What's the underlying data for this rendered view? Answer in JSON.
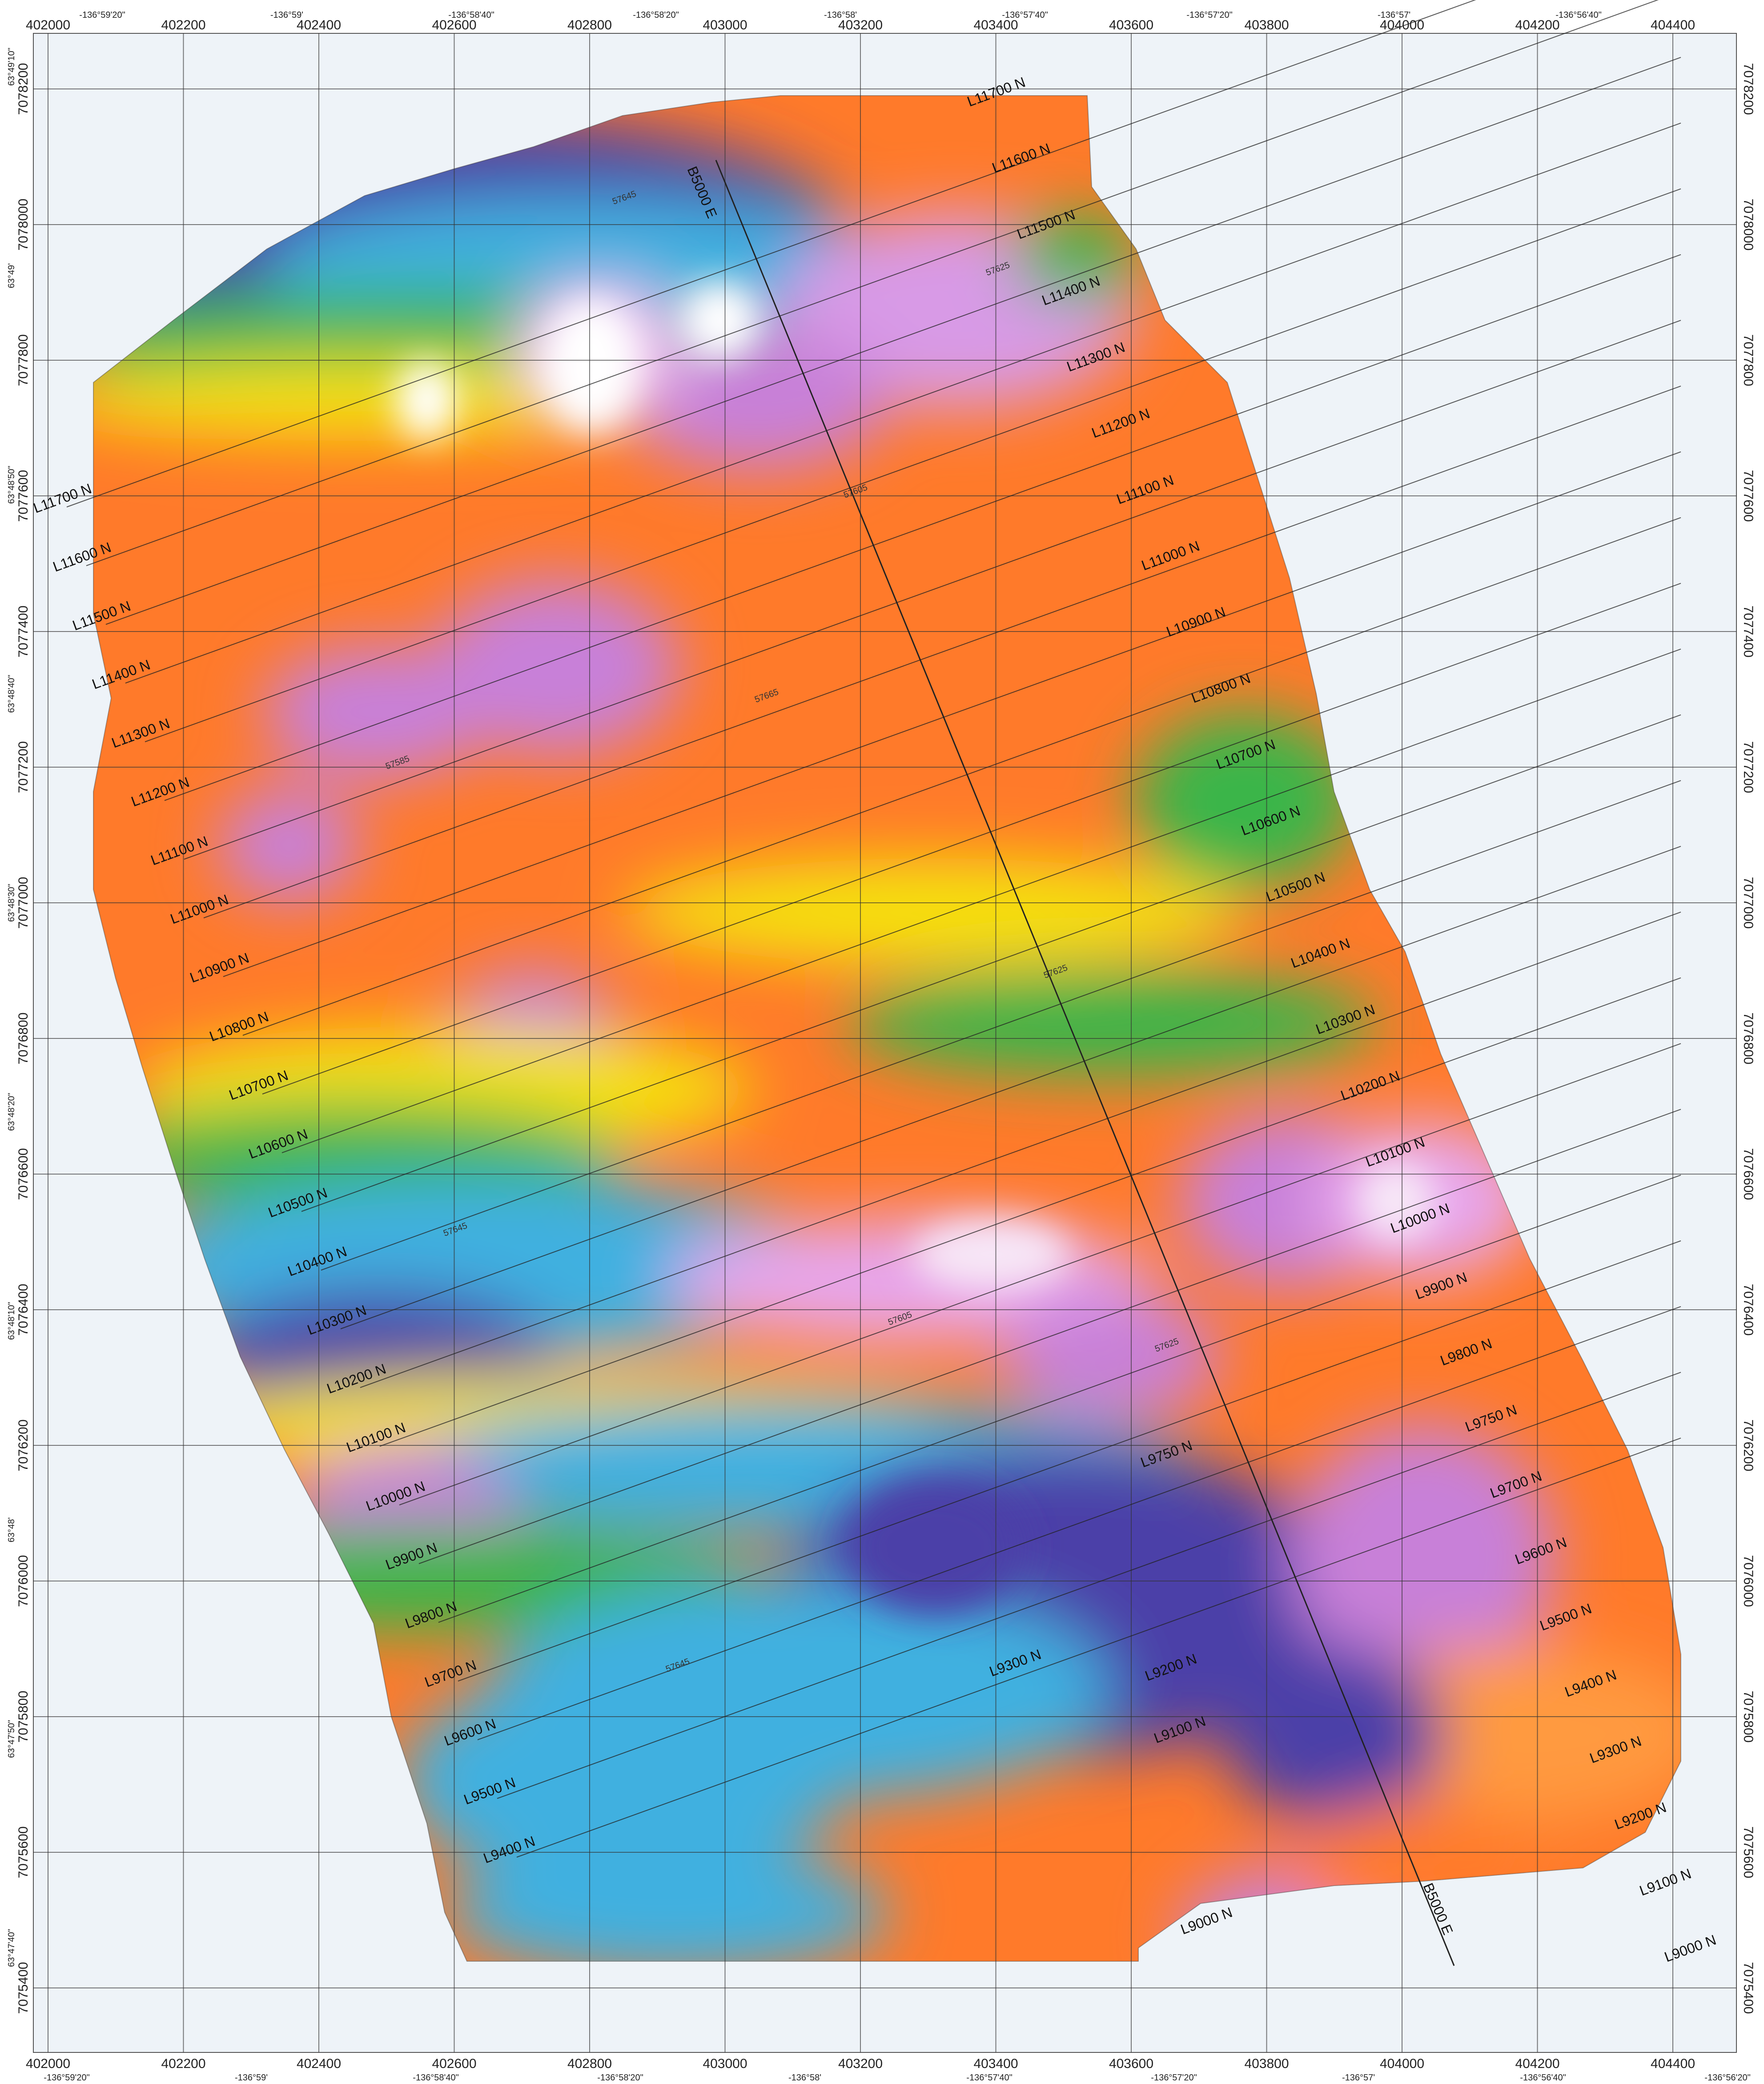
{
  "map": {
    "easting_ticks": [
      "402000",
      "402200",
      "402400",
      "402600",
      "402800",
      "403000",
      "403200",
      "403400",
      "403600",
      "403800",
      "404000",
      "404200",
      "404400"
    ],
    "northing_ticks": [
      "7078200",
      "7078000",
      "7077800",
      "7077600",
      "7077400",
      "7077200",
      "7077000",
      "7076800",
      "7076600",
      "7076400",
      "7076200",
      "7076000",
      "7075800",
      "7075600",
      "7075400"
    ],
    "top_longitudes": [
      "-136°59'20\"",
      "-136°59'",
      "-136°58'40\"",
      "-136°58'20\"",
      "-136°58'",
      "-136°57'40\"",
      "-136°57'20\"",
      "-136°57'",
      "-136°56'40\""
    ],
    "bottom_longitudes": [
      "-136°59'20\"",
      "-136°59'",
      "-136°58'40\"",
      "-136°58'20\"",
      "-136°58'",
      "-136°57'40\"",
      "-136°57'20\"",
      "-136°57'",
      "-136°56'40\"",
      "-136°56'20\""
    ],
    "left_latitudes": [
      "63°49'10\"",
      "63°49'",
      "63°48'50\"",
      "63°48'40\"",
      "63°48'30\"",
      "63°48'20\"",
      "63°48'10\"",
      "63°48'",
      "63°47'50\"",
      "63°47'40\""
    ],
    "survey_lines_left": [
      "L11700 N",
      "L11600 N",
      "L11500 N",
      "L11400 N",
      "L11300 N",
      "L11200 N",
      "L11100 N",
      "L11000 N",
      "L10900 N",
      "L10800 N",
      "L10700 N",
      "L10600 N",
      "L10500 N",
      "L10400 N",
      "L10300 N",
      "L10200 N",
      "L10100 N",
      "L10000 N",
      "L9900 N",
      "L9800 N",
      "L9700 N",
      "L9600 N",
      "L9500 N",
      "L9400 N"
    ],
    "survey_lines_right": [
      "L11700 N",
      "L11600 N",
      "L11500 N",
      "L11400 N",
      "L11300 N",
      "L11200 N",
      "L11100 N",
      "L11000 N",
      "L10900 N",
      "L10800 N",
      "L10700 N",
      "L10600 N",
      "L10500 N",
      "L10400 N",
      "L10300 N",
      "L10200 N",
      "L10100 N",
      "L10000 N",
      "L9900 N",
      "L9800 N",
      "L9750 N",
      "L9700 N",
      "L9600 N",
      "L9500 N",
      "L9400 N",
      "L9300 N",
      "L9200 N",
      "L9100 N",
      "L9000 N"
    ],
    "inner_labels": [
      "L9750 N",
      "L9300 N",
      "L9200 N",
      "L9100 N",
      "L9000 N"
    ],
    "baseline_label": "B5000 E",
    "contour_labels": [
      "57645",
      "57625",
      "57605",
      "57585",
      "57665",
      "57625",
      "57645",
      "57605",
      "57625",
      "57645"
    ]
  }
}
